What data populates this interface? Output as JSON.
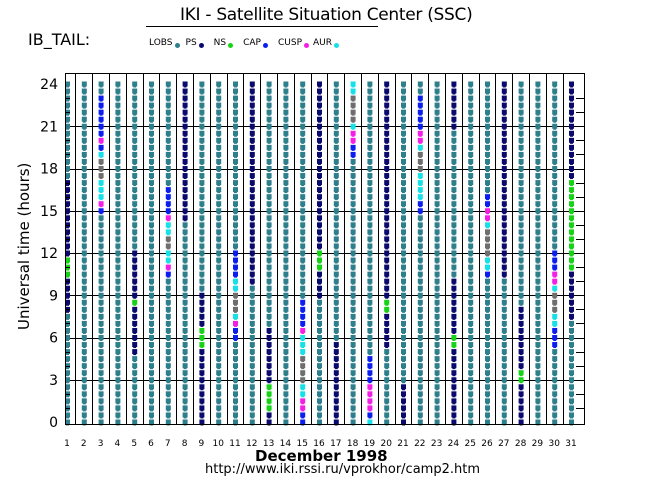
{
  "header": {
    "title": "IKI - Satellite Situation Center (SSC)",
    "mode": "IB_TAIL:"
  },
  "legend": [
    {
      "label": "LOBS",
      "key": "LOBS",
      "color": "#2e7f8c"
    },
    {
      "label": "PS",
      "key": "PS",
      "color": "#0a0a6e"
    },
    {
      "label": "NS",
      "key": "NS",
      "color": "#17d317"
    },
    {
      "label": "CAP",
      "key": "CAP",
      "color": "#0a1ef0"
    },
    {
      "label": "CUSP",
      "key": "CUSP",
      "color": "#f51ee6"
    },
    {
      "label": "AUR",
      "key": "AUR",
      "color": "#16e0e8"
    }
  ],
  "footer": {
    "month_label": "December    1998",
    "url": "http://www.iki.rssi.ru/vprokhor/camp2.htm"
  },
  "chart_data": {
    "type": "timeline-strip",
    "title": "IKI - Satellite Situation Center (SSC)",
    "xlabel": "December 1998",
    "ylabel": "Universal time (hours)",
    "x_ticks": [
      1,
      2,
      3,
      4,
      5,
      6,
      7,
      8,
      9,
      10,
      11,
      12,
      13,
      14,
      15,
      16,
      17,
      18,
      19,
      20,
      21,
      22,
      23,
      24,
      25,
      26,
      27,
      28,
      29,
      30,
      31
    ],
    "y_ticks": [
      0,
      3,
      6,
      9,
      12,
      15,
      18,
      21,
      24
    ],
    "ylim": [
      0,
      24
    ],
    "grid": true,
    "default_region": "LOBS",
    "extra_colors": {
      "GRAY": "#6e6e6e"
    },
    "days": [
      {
        "day": 1,
        "segments": [
          [
            8,
            10.5,
            "PS"
          ],
          [
            10.5,
            12,
            "NS"
          ],
          [
            12,
            17,
            "PS"
          ]
        ]
      },
      {
        "day": 2,
        "segments": []
      },
      {
        "day": 3,
        "segments": [
          [
            15,
            15.5,
            "CAP"
          ],
          [
            15.5,
            16,
            "CUSP"
          ],
          [
            16,
            17.5,
            "AUR"
          ],
          [
            17.5,
            19,
            "GRAY"
          ],
          [
            19,
            19.5,
            "AUR"
          ],
          [
            19.5,
            20,
            "CAP"
          ],
          [
            20,
            20.5,
            "CUSP"
          ],
          [
            20.5,
            23,
            "CAP"
          ]
        ]
      },
      {
        "day": 4,
        "segments": []
      },
      {
        "day": 5,
        "segments": [
          [
            5,
            8.5,
            "PS"
          ],
          [
            8.5,
            9,
            "NS"
          ],
          [
            9,
            12,
            "PS"
          ]
        ]
      },
      {
        "day": 6,
        "segments": []
      },
      {
        "day": 7,
        "segments": [
          [
            10.5,
            11,
            "CAP"
          ],
          [
            11,
            11.5,
            "CUSP"
          ],
          [
            11.5,
            12.5,
            "AUR"
          ],
          [
            12.5,
            13.5,
            "GRAY"
          ],
          [
            13.5,
            14.5,
            "AUR"
          ],
          [
            14.5,
            15,
            "CUSP"
          ],
          [
            15,
            16.5,
            "CAP"
          ]
        ]
      },
      {
        "day": 8,
        "segments": [
          [
            14.5,
            24,
            "PS"
          ]
        ]
      },
      {
        "day": 9,
        "segments": [
          [
            0,
            5.5,
            "PS"
          ],
          [
            5.5,
            7,
            "NS"
          ],
          [
            7,
            9,
            "PS"
          ]
        ]
      },
      {
        "day": 10,
        "segments": []
      },
      {
        "day": 11,
        "segments": [
          [
            6,
            7,
            "CAP"
          ],
          [
            7,
            7.5,
            "CUSP"
          ],
          [
            7.5,
            8,
            "AUR"
          ],
          [
            8,
            9.5,
            "GRAY"
          ],
          [
            9.5,
            10.5,
            "AUR"
          ],
          [
            10.5,
            12,
            "CAP"
          ]
        ]
      },
      {
        "day": 12,
        "segments": [
          [
            10,
            24,
            "PS"
          ]
        ]
      },
      {
        "day": 13,
        "segments": [
          [
            0,
            1,
            "PS"
          ],
          [
            1,
            3,
            "NS"
          ],
          [
            3,
            6.5,
            "PS"
          ]
        ]
      },
      {
        "day": 14,
        "segments": []
      },
      {
        "day": 15,
        "segments": [
          [
            0,
            1,
            "CAP"
          ],
          [
            1,
            2,
            "CUSP"
          ],
          [
            2,
            3,
            "AUR"
          ],
          [
            3,
            5,
            "GRAY"
          ],
          [
            5,
            6.5,
            "AUR"
          ],
          [
            6.5,
            7,
            "CUSP"
          ],
          [
            7,
            8.5,
            "CAP"
          ]
        ]
      },
      {
        "day": 16,
        "segments": [
          [
            9,
            11,
            "PS"
          ],
          [
            11,
            12.5,
            "NS"
          ],
          [
            12.5,
            24,
            "PS"
          ]
        ]
      },
      {
        "day": 17,
        "segments": [
          [
            0,
            5.5,
            "PS"
          ]
        ]
      },
      {
        "day": 18,
        "segments": [
          [
            19,
            20,
            "CAP"
          ],
          [
            20,
            21,
            "CUSP"
          ],
          [
            21,
            21.5,
            "AUR"
          ],
          [
            21.5,
            23.5,
            "GRAY"
          ],
          [
            23.5,
            24,
            "AUR"
          ]
        ]
      },
      {
        "day": 19,
        "segments": [
          [
            0,
            0.5,
            "AUR"
          ],
          [
            0.5,
            1,
            "CAP"
          ],
          [
            1,
            3,
            "CUSP"
          ],
          [
            3,
            4.5,
            "CAP"
          ]
        ]
      },
      {
        "day": 20,
        "segments": [
          [
            5.5,
            8,
            "PS"
          ],
          [
            8,
            9,
            "NS"
          ],
          [
            9,
            24,
            "PS"
          ]
        ]
      },
      {
        "day": 21,
        "segments": [
          [
            0,
            2.5,
            "PS"
          ]
        ]
      },
      {
        "day": 22,
        "segments": [
          [
            15,
            16,
            "CAP"
          ],
          [
            16,
            18,
            "AUR"
          ],
          [
            18,
            19.5,
            "GRAY"
          ],
          [
            19.5,
            20,
            "AUR"
          ],
          [
            20,
            21,
            "CUSP"
          ],
          [
            21,
            23,
            "CAP"
          ]
        ]
      },
      {
        "day": 23,
        "segments": []
      },
      {
        "day": 24,
        "segments": [
          [
            0,
            5.5,
            "PS"
          ],
          [
            5.5,
            6.5,
            "NS"
          ],
          [
            6.5,
            10,
            "PS"
          ],
          [
            21,
            24,
            "PS"
          ]
        ]
      },
      {
        "day": 25,
        "segments": []
      },
      {
        "day": 26,
        "segments": [
          [
            10.5,
            11,
            "CAP"
          ],
          [
            11,
            12,
            "AUR"
          ],
          [
            12,
            14,
            "GRAY"
          ],
          [
            14,
            14.5,
            "AUR"
          ],
          [
            14.5,
            15.5,
            "CUSP"
          ],
          [
            15.5,
            16,
            "CAP"
          ]
        ]
      },
      {
        "day": 27,
        "segments": [
          [
            10.5,
            24,
            "PS"
          ]
        ]
      },
      {
        "day": 28,
        "segments": [
          [
            0,
            3,
            "PS"
          ],
          [
            3,
            4,
            "NS"
          ],
          [
            4,
            8,
            "PS"
          ]
        ]
      },
      {
        "day": 29,
        "segments": []
      },
      {
        "day": 30,
        "segments": [
          [
            5.5,
            7,
            "CAP"
          ],
          [
            7,
            8,
            "AUR"
          ],
          [
            8,
            9.5,
            "GRAY"
          ],
          [
            9.5,
            10,
            "AUR"
          ],
          [
            10,
            11,
            "CUSP"
          ],
          [
            11,
            12,
            "CAP"
          ]
        ]
      },
      {
        "day": 31,
        "segments": [
          [
            7.5,
            11,
            "PS"
          ],
          [
            11,
            17.5,
            "NS"
          ],
          [
            17.5,
            24,
            "PS"
          ]
        ]
      }
    ]
  }
}
